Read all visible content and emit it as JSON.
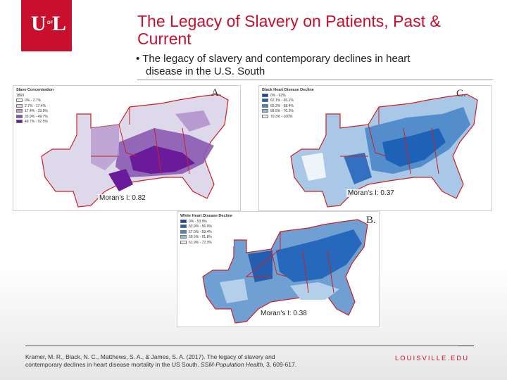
{
  "logo": {
    "u": "U",
    "of": "OF",
    "l": "L"
  },
  "title": "The Legacy of Slavery on Patients, Past & Current",
  "bullet": {
    "marker": "•",
    "line1": "The legacy of slavery and contemporary declines in heart",
    "line2": "disease in the U.S. South"
  },
  "maps": {
    "a": {
      "letter": "A.",
      "legend_title": "Slave Concentration",
      "legend_subtitle": "1860",
      "legend_items": [
        "0% - 2.7%",
        "2.7% - 17.4%",
        "17.4% - 33.9%",
        "33.9% - 49.7%",
        "49.7% - 92.5%"
      ],
      "legend_colors": [
        "#f4f0f7",
        "#dcd2e8",
        "#b69ad0",
        "#8b5bb3",
        "#6a1b9a"
      ],
      "morans": "Moran's I: 0.82"
    },
    "c": {
      "letter": "C.",
      "legend_title": "Black Heart Disease Decline",
      "legend_items": [
        "0% - 62%",
        "62.1% - 65.1%",
        "65.2% - 68.4%",
        "68.5% - 70.2%",
        "70.3% - 100%"
      ],
      "legend_colors": [
        "#0d47a1",
        "#1e62b8",
        "#4a86c8",
        "#90b6dd",
        "#eef4fa"
      ],
      "morans": "Moran's I: 0.37"
    },
    "b": {
      "letter": "B.",
      "legend_title": "White Heart Disease Decline",
      "legend_items": [
        "0% - 53.9%",
        "53.9% - 56.9%",
        "57.0% - 59.4%",
        "59.5% - 61.8%",
        "61.9% - 72.3%"
      ],
      "legend_colors": [
        "#0d47a1",
        "#1e62b8",
        "#4a86c8",
        "#90b6dd",
        "#eef4fa"
      ],
      "morans": "Moran's I: 0.38"
    }
  },
  "citation": {
    "text": "Kramer, M. R., Black, N. C., Matthews, S. A., & James, S. A. (2017). The legacy of slavery and contemporary declines in heart disease mortality in the US South. ",
    "journal": "SSM-Population Health",
    "tail": ", 3, 609-617."
  },
  "footer": {
    "url": "LOUISVILLE.EDU"
  },
  "colors": {
    "brand_red": "#c8102e",
    "border_red": "#cc2222"
  }
}
